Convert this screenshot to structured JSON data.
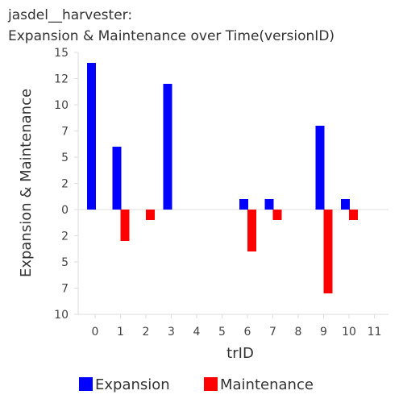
{
  "chart_data": {
    "type": "bar",
    "title_line1": "jasdel__harvester:",
    "title_line2": "Expansion & Maintenance over Time(versionID)",
    "xlabel": "trID",
    "ylabel": "Expansion & Maintenance",
    "categories": [
      "0",
      "1",
      "2",
      "3",
      "4",
      "5",
      "6",
      "7",
      "8",
      "9",
      "10",
      "11"
    ],
    "series": [
      {
        "name": "Expansion",
        "color": "#0000ff",
        "direction": "up",
        "values": [
          14,
          6,
          0,
          12,
          0,
          0,
          1,
          1,
          0,
          8,
          1,
          0
        ]
      },
      {
        "name": "Maintenance",
        "color": "#ff0000",
        "direction": "down",
        "values": [
          0,
          3,
          1,
          0,
          0,
          0,
          4,
          1,
          0,
          8,
          1,
          0
        ]
      }
    ],
    "y_ticks_up": [
      "0",
      "2",
      "5",
      "7",
      "10",
      "12",
      "15"
    ],
    "y_ticks_down": [
      "2",
      "5",
      "7",
      "10"
    ],
    "ylim_up": 15,
    "ylim_down": 10,
    "legend_position": "bottom",
    "grid": false
  }
}
